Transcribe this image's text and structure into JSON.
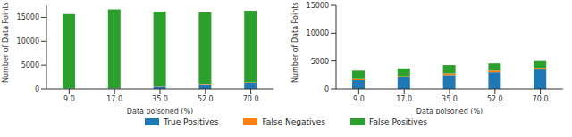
{
  "chart_data": [
    {
      "type": "bar",
      "stacked": true,
      "legend": "bottom",
      "grid": false,
      "x_label": "Data poisoned (%)",
      "y_label": "Number of Data Points",
      "categories": [
        "9.0",
        "17.0",
        "35.0",
        "52.0",
        "70.0"
      ],
      "ylim": [
        0,
        17500
      ],
      "yticks": [
        0,
        5000,
        10000,
        15000
      ],
      "series": [
        {
          "name": "True Positives",
          "color": "#1f77b4",
          "values": [
            50,
            100,
            500,
            1000,
            1300
          ]
        },
        {
          "name": "False Negatives",
          "color": "#ff7f0e",
          "values": [
            30,
            30,
            80,
            100,
            100
          ]
        },
        {
          "name": "False Positives",
          "color": "#2ca02c",
          "values": [
            15600,
            16550,
            15600,
            14900,
            15000
          ]
        }
      ]
    },
    {
      "type": "bar",
      "stacked": true,
      "legend": "bottom",
      "grid": false,
      "x_label": "Data poisoned (%)",
      "y_label": "Number of Data Points",
      "categories": [
        "9.0",
        "17.0",
        "35.0",
        "52.0",
        "70.0"
      ],
      "ylim": [
        0,
        15000
      ],
      "yticks": [
        0,
        5000,
        10000,
        15000
      ],
      "series": [
        {
          "name": "True Positives",
          "color": "#1f77b4",
          "values": [
            1600,
            2100,
            2500,
            3000,
            3500
          ]
        },
        {
          "name": "False Negatives",
          "color": "#ff7f0e",
          "values": [
            200,
            200,
            300,
            300,
            300
          ]
        },
        {
          "name": "False Positives",
          "color": "#2ca02c",
          "values": [
            1500,
            1400,
            1500,
            1300,
            1200
          ]
        }
      ]
    }
  ]
}
